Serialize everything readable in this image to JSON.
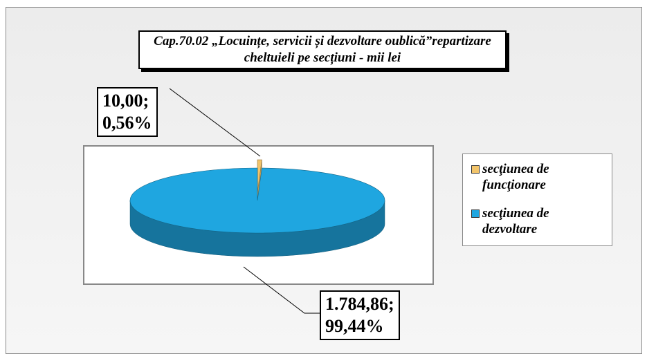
{
  "chart_data": {
    "type": "pie3d",
    "title": "Cap.70.02 „Locuințe, servicii și dezvoltare oublică”repartizare cheltuieli pe secțiuni - mii lei",
    "categories": [
      "secţiunea de funcţionare",
      "secţiunea de dezvoltare"
    ],
    "values": [
      10,
      1784.86
    ],
    "value_labels": [
      "10,00;\n0,56%",
      "1.784,86;\n99,44%"
    ],
    "colors": [
      "#f2c46a",
      "#1fa6e0"
    ],
    "legend": "right"
  }
}
